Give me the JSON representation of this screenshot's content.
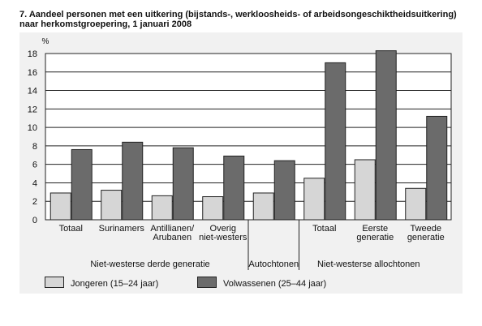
{
  "title": "7.  Aandeel personen met een uitkering (bijstands-, werkloosheids- of arbeidsongeschiktheidsuitkering)\nnaar herkomstgroepering, 1 januari 2008",
  "chart_data": {
    "type": "bar",
    "unit_label": "%",
    "categories": [
      [
        "Totaal"
      ],
      [
        "Surinamers"
      ],
      [
        "Antillianen/",
        "Arubanen"
      ],
      [
        "Overig",
        "niet-westers"
      ],
      [
        ""
      ],
      [
        "Totaal"
      ],
      [
        "Eerste",
        "generatie"
      ],
      [
        "Tweede",
        "generatie"
      ]
    ],
    "series": [
      {
        "name": "Jongeren (15–24 jaar)",
        "color": "#d6d6d6",
        "values": [
          2.9,
          3.2,
          2.6,
          2.5,
          2.9,
          4.5,
          6.5,
          3.4
        ]
      },
      {
        "name": "Volwassenen (25–44 jaar)",
        "color": "#6b6b6b",
        "values": [
          7.6,
          8.4,
          7.8,
          6.9,
          6.4,
          17.0,
          18.3,
          11.2
        ]
      }
    ],
    "ylim": [
      0,
      18
    ],
    "yticks": [
      0,
      2,
      4,
      6,
      8,
      10,
      12,
      14,
      16,
      18
    ],
    "grid": true,
    "groups": [
      {
        "label": "Niet-westerse derde generatie",
        "categories": [
          0,
          1,
          2,
          3
        ]
      },
      {
        "label": "Autochtonen",
        "categories": [
          4
        ]
      },
      {
        "label": "Niet-westerse allochtonen",
        "categories": [
          5,
          6,
          7
        ]
      }
    ],
    "legend_position": "bottom"
  }
}
